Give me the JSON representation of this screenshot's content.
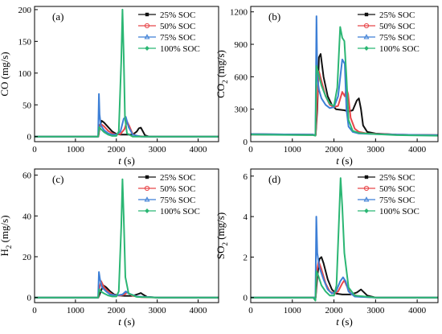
{
  "figure": {
    "series_labels": [
      "25% SOC",
      "50% SOC",
      "75% SOC",
      "100% SOC"
    ],
    "series_colors": [
      "#111111",
      "#e8474a",
      "#3d7fd6",
      "#2bb673"
    ]
  },
  "chart_data": [
    {
      "panel": "(a)",
      "type": "line",
      "xlabel": "t (s)",
      "ylabel": "CO (mg/s)",
      "xlim": [
        0,
        4500
      ],
      "ylim": [
        -8,
        205
      ],
      "xticks": [
        0,
        1000,
        2000,
        3000,
        4000
      ],
      "yticks": [
        0,
        50,
        100,
        150,
        200
      ],
      "legend": "top-right",
      "series": [
        {
          "name": "25% SOC",
          "x": [
            0,
            1500,
            1560,
            1600,
            1640,
            1700,
            1800,
            1900,
            2000,
            2100,
            2200,
            2300,
            2400,
            2500,
            2550,
            2600,
            2650,
            2700,
            2800,
            3000,
            4500
          ],
          "y": [
            0,
            0,
            0,
            18,
            25,
            22,
            15,
            8,
            4,
            3,
            3,
            3,
            3,
            8,
            13,
            14,
            8,
            2,
            0,
            0,
            0
          ]
        },
        {
          "name": "50% SOC",
          "x": [
            0,
            1500,
            1560,
            1580,
            1620,
            1700,
            1800,
            1900,
            2000,
            2100,
            2200,
            2260,
            2320,
            2400,
            2500,
            2700,
            3000,
            4500
          ],
          "y": [
            0,
            0,
            0,
            12,
            20,
            16,
            9,
            5,
            3,
            4,
            12,
            24,
            16,
            4,
            1,
            0,
            0,
            0
          ]
        },
        {
          "name": "75% SOC",
          "x": [
            0,
            1500,
            1555,
            1575,
            1590,
            1620,
            1700,
            1800,
            1900,
            2000,
            2100,
            2180,
            2230,
            2300,
            2400,
            2600,
            3000,
            4500
          ],
          "y": [
            0,
            0,
            0,
            67,
            35,
            18,
            10,
            5,
            3,
            3,
            8,
            28,
            31,
            15,
            3,
            0,
            0,
            0
          ]
        },
        {
          "name": "100% SOC",
          "x": [
            0,
            1500,
            1555,
            1580,
            1620,
            1700,
            1800,
            1900,
            2000,
            2060,
            2120,
            2150,
            2180,
            2210,
            2260,
            2400,
            3000,
            4500
          ],
          "y": [
            0,
            0,
            0,
            15,
            12,
            7,
            3,
            1,
            1,
            8,
            120,
            200,
            130,
            30,
            5,
            0,
            0,
            0
          ]
        }
      ]
    },
    {
      "panel": "(b)",
      "type": "line",
      "xlabel": "t (s)",
      "ylabel": "CO2 (mg/s)",
      "xlim": [
        0,
        4500
      ],
      "ylim": [
        0,
        1250
      ],
      "xticks": [
        0,
        1000,
        2000,
        3000,
        4000
      ],
      "yticks": [
        0,
        300,
        600,
        900,
        1200
      ],
      "legend": "top-right",
      "series": [
        {
          "name": "25% SOC",
          "x": [
            0,
            1500,
            1560,
            1600,
            1640,
            1680,
            1750,
            1850,
            1950,
            2050,
            2150,
            2250,
            2350,
            2450,
            2550,
            2600,
            2650,
            2700,
            2800,
            3000,
            3500,
            4500
          ],
          "y": [
            70,
            65,
            60,
            300,
            780,
            810,
            600,
            420,
            340,
            300,
            295,
            290,
            280,
            290,
            380,
            400,
            300,
            150,
            90,
            75,
            65,
            60
          ]
        },
        {
          "name": "50% SOC",
          "x": [
            0,
            1500,
            1560,
            1600,
            1640,
            1700,
            1800,
            1900,
            2000,
            2100,
            2200,
            2260,
            2300,
            2340,
            2400,
            2500,
            2600,
            2800,
            3500,
            4500
          ],
          "y": [
            65,
            62,
            60,
            400,
            650,
            560,
            420,
            340,
            320,
            330,
            460,
            420,
            490,
            440,
            220,
            120,
            90,
            75,
            65,
            60
          ]
        },
        {
          "name": "75% SOC",
          "x": [
            0,
            1500,
            1555,
            1580,
            1600,
            1640,
            1700,
            1800,
            1900,
            2000,
            2100,
            2200,
            2260,
            2300,
            2350,
            2450,
            2600,
            3000,
            3500,
            4500
          ],
          "y": [
            70,
            65,
            60,
            1160,
            600,
            480,
            400,
            340,
            310,
            320,
            420,
            760,
            720,
            300,
            140,
            90,
            75,
            70,
            65,
            60
          ]
        },
        {
          "name": "100% SOC",
          "x": [
            0,
            1500,
            1555,
            1580,
            1620,
            1700,
            1800,
            1900,
            2000,
            2080,
            2150,
            2200,
            2250,
            2300,
            2350,
            2450,
            2600,
            3000,
            3500,
            4500
          ],
          "y": [
            65,
            60,
            55,
            700,
            640,
            520,
            420,
            350,
            330,
            500,
            1060,
            960,
            930,
            600,
            200,
            100,
            80,
            70,
            60,
            55
          ]
        }
      ]
    },
    {
      "panel": "(c)",
      "type": "line",
      "xlabel": "t (s)",
      "ylabel": "H2 (mg/s)",
      "xlim": [
        0,
        4500
      ],
      "ylim": [
        -2.5,
        63
      ],
      "xticks": [
        0,
        1000,
        2000,
        3000,
        4000
      ],
      "yticks": [
        0,
        20,
        40,
        60
      ],
      "legend": "top-right",
      "series": [
        {
          "name": "25% SOC",
          "x": [
            0,
            1500,
            1560,
            1620,
            1680,
            1750,
            1850,
            1950,
            2050,
            2200,
            2400,
            2550,
            2600,
            2650,
            2750,
            3000,
            4500
          ],
          "y": [
            0,
            0,
            0,
            3,
            6,
            5,
            3,
            1.5,
            1,
            0.8,
            0.8,
            1.8,
            2.2,
            1.5,
            0.3,
            0,
            0
          ]
        },
        {
          "name": "50% SOC",
          "x": [
            0,
            1500,
            1560,
            1590,
            1630,
            1700,
            1800,
            1900,
            2000,
            2100,
            2200,
            2260,
            2320,
            2400,
            2600,
            3000,
            4500
          ],
          "y": [
            0,
            0,
            0,
            5,
            8,
            5,
            3,
            1.5,
            1,
            1,
            1.5,
            2.5,
            1.8,
            0.8,
            0.2,
            0,
            0
          ]
        },
        {
          "name": "75% SOC",
          "x": [
            0,
            1500,
            1555,
            1575,
            1600,
            1650,
            1750,
            1850,
            2000,
            2150,
            2230,
            2300,
            2500,
            3000,
            4500
          ],
          "y": [
            0,
            0,
            0,
            12.5,
            9,
            5,
            3,
            1.5,
            1,
            1.5,
            3,
            2,
            0.5,
            0,
            0
          ]
        },
        {
          "name": "100% SOC",
          "x": [
            0,
            1500,
            1555,
            1580,
            1620,
            1700,
            1800,
            1900,
            2000,
            2060,
            2120,
            2150,
            2180,
            2220,
            2300,
            2500,
            3000,
            4500
          ],
          "y": [
            0,
            0,
            0,
            4,
            3,
            2,
            1,
            0.5,
            0.5,
            3,
            35,
            58,
            40,
            10,
            2,
            0.3,
            0,
            0
          ]
        }
      ]
    },
    {
      "panel": "(d)",
      "type": "line",
      "xlabel": "t (s)",
      "ylabel": "SO2 (mg/s)",
      "xlim": [
        0,
        4500
      ],
      "ylim": [
        -0.25,
        6.35
      ],
      "xticks": [
        0,
        1000,
        2000,
        3000,
        4000
      ],
      "yticks": [
        0,
        2,
        4,
        6
      ],
      "legend": "top-right",
      "series": [
        {
          "name": "25% SOC",
          "x": [
            0,
            1500,
            1560,
            1600,
            1650,
            1700,
            1750,
            1850,
            1950,
            2050,
            2200,
            2400,
            2550,
            2650,
            2700,
            2800,
            3000,
            4500
          ],
          "y": [
            0,
            0,
            0,
            1,
            1.9,
            2,
            1.7,
            0.9,
            0.4,
            0.2,
            0.15,
            0.15,
            0.25,
            0.4,
            0.3,
            0.1,
            0,
            0
          ]
        },
        {
          "name": "50% SOC",
          "x": [
            0,
            1500,
            1560,
            1590,
            1630,
            1700,
            1800,
            1900,
            2000,
            2100,
            2200,
            2250,
            2300,
            2400,
            2600,
            3000,
            4500
          ],
          "y": [
            0,
            0,
            0,
            1.3,
            1.8,
            1.4,
            0.7,
            0.3,
            0.2,
            0.3,
            0.7,
            0.85,
            0.6,
            0.2,
            0.05,
            0,
            0
          ]
        },
        {
          "name": "75% SOC",
          "x": [
            0,
            1500,
            1555,
            1575,
            1600,
            1650,
            1750,
            1850,
            1950,
            2050,
            2150,
            2220,
            2280,
            2350,
            2500,
            3000,
            4500
          ],
          "y": [
            0,
            0,
            0,
            4,
            2.2,
            1.5,
            0.9,
            0.4,
            0.2,
            0.3,
            0.8,
            1.0,
            0.8,
            0.3,
            0.05,
            0,
            0
          ]
        },
        {
          "name": "100% SOC",
          "x": [
            0,
            1500,
            1555,
            1580,
            1620,
            1700,
            1800,
            1900,
            2000,
            2060,
            2120,
            2160,
            2200,
            2250,
            2350,
            2500,
            3000,
            4500
          ],
          "y": [
            0,
            0,
            -0.15,
            1.3,
            1.1,
            0.6,
            0.3,
            0.1,
            0.1,
            0.6,
            3.8,
            5.9,
            4.5,
            2.2,
            0.5,
            0.1,
            0,
            0
          ]
        }
      ]
    }
  ]
}
